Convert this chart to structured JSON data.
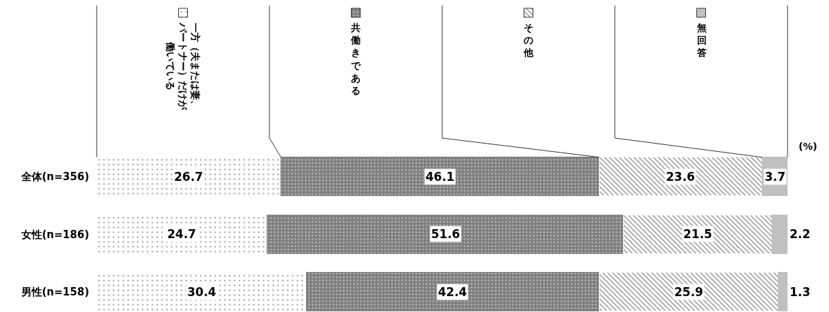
{
  "chart_data": {
    "type": "bar",
    "orientation": "horizontal",
    "stacked": true,
    "categories": [
      "全体(n=356)",
      "女性(n=186)",
      "男性(n=158)"
    ],
    "series": [
      {
        "name": "一方（夫または妻、パートナー）だけが働いている",
        "color": "#ffffff",
        "values": [
          26.7,
          24.7,
          30.4
        ]
      },
      {
        "name": "共働きである",
        "color": "#808080",
        "values": [
          46.1,
          51.6,
          42.4
        ]
      },
      {
        "name": "その他",
        "color": "#ffffff",
        "values": [
          23.6,
          21.5,
          25.9
        ]
      },
      {
        "name": "無回答",
        "color": "#c0c0c0",
        "values": [
          3.7,
          2.2,
          1.3
        ]
      }
    ],
    "xlim": [
      0,
      100.1
    ],
    "data_labels": true,
    "legend": "top",
    "tick_labels": "y",
    "annotations": [
      "(%)"
    ]
  }
}
